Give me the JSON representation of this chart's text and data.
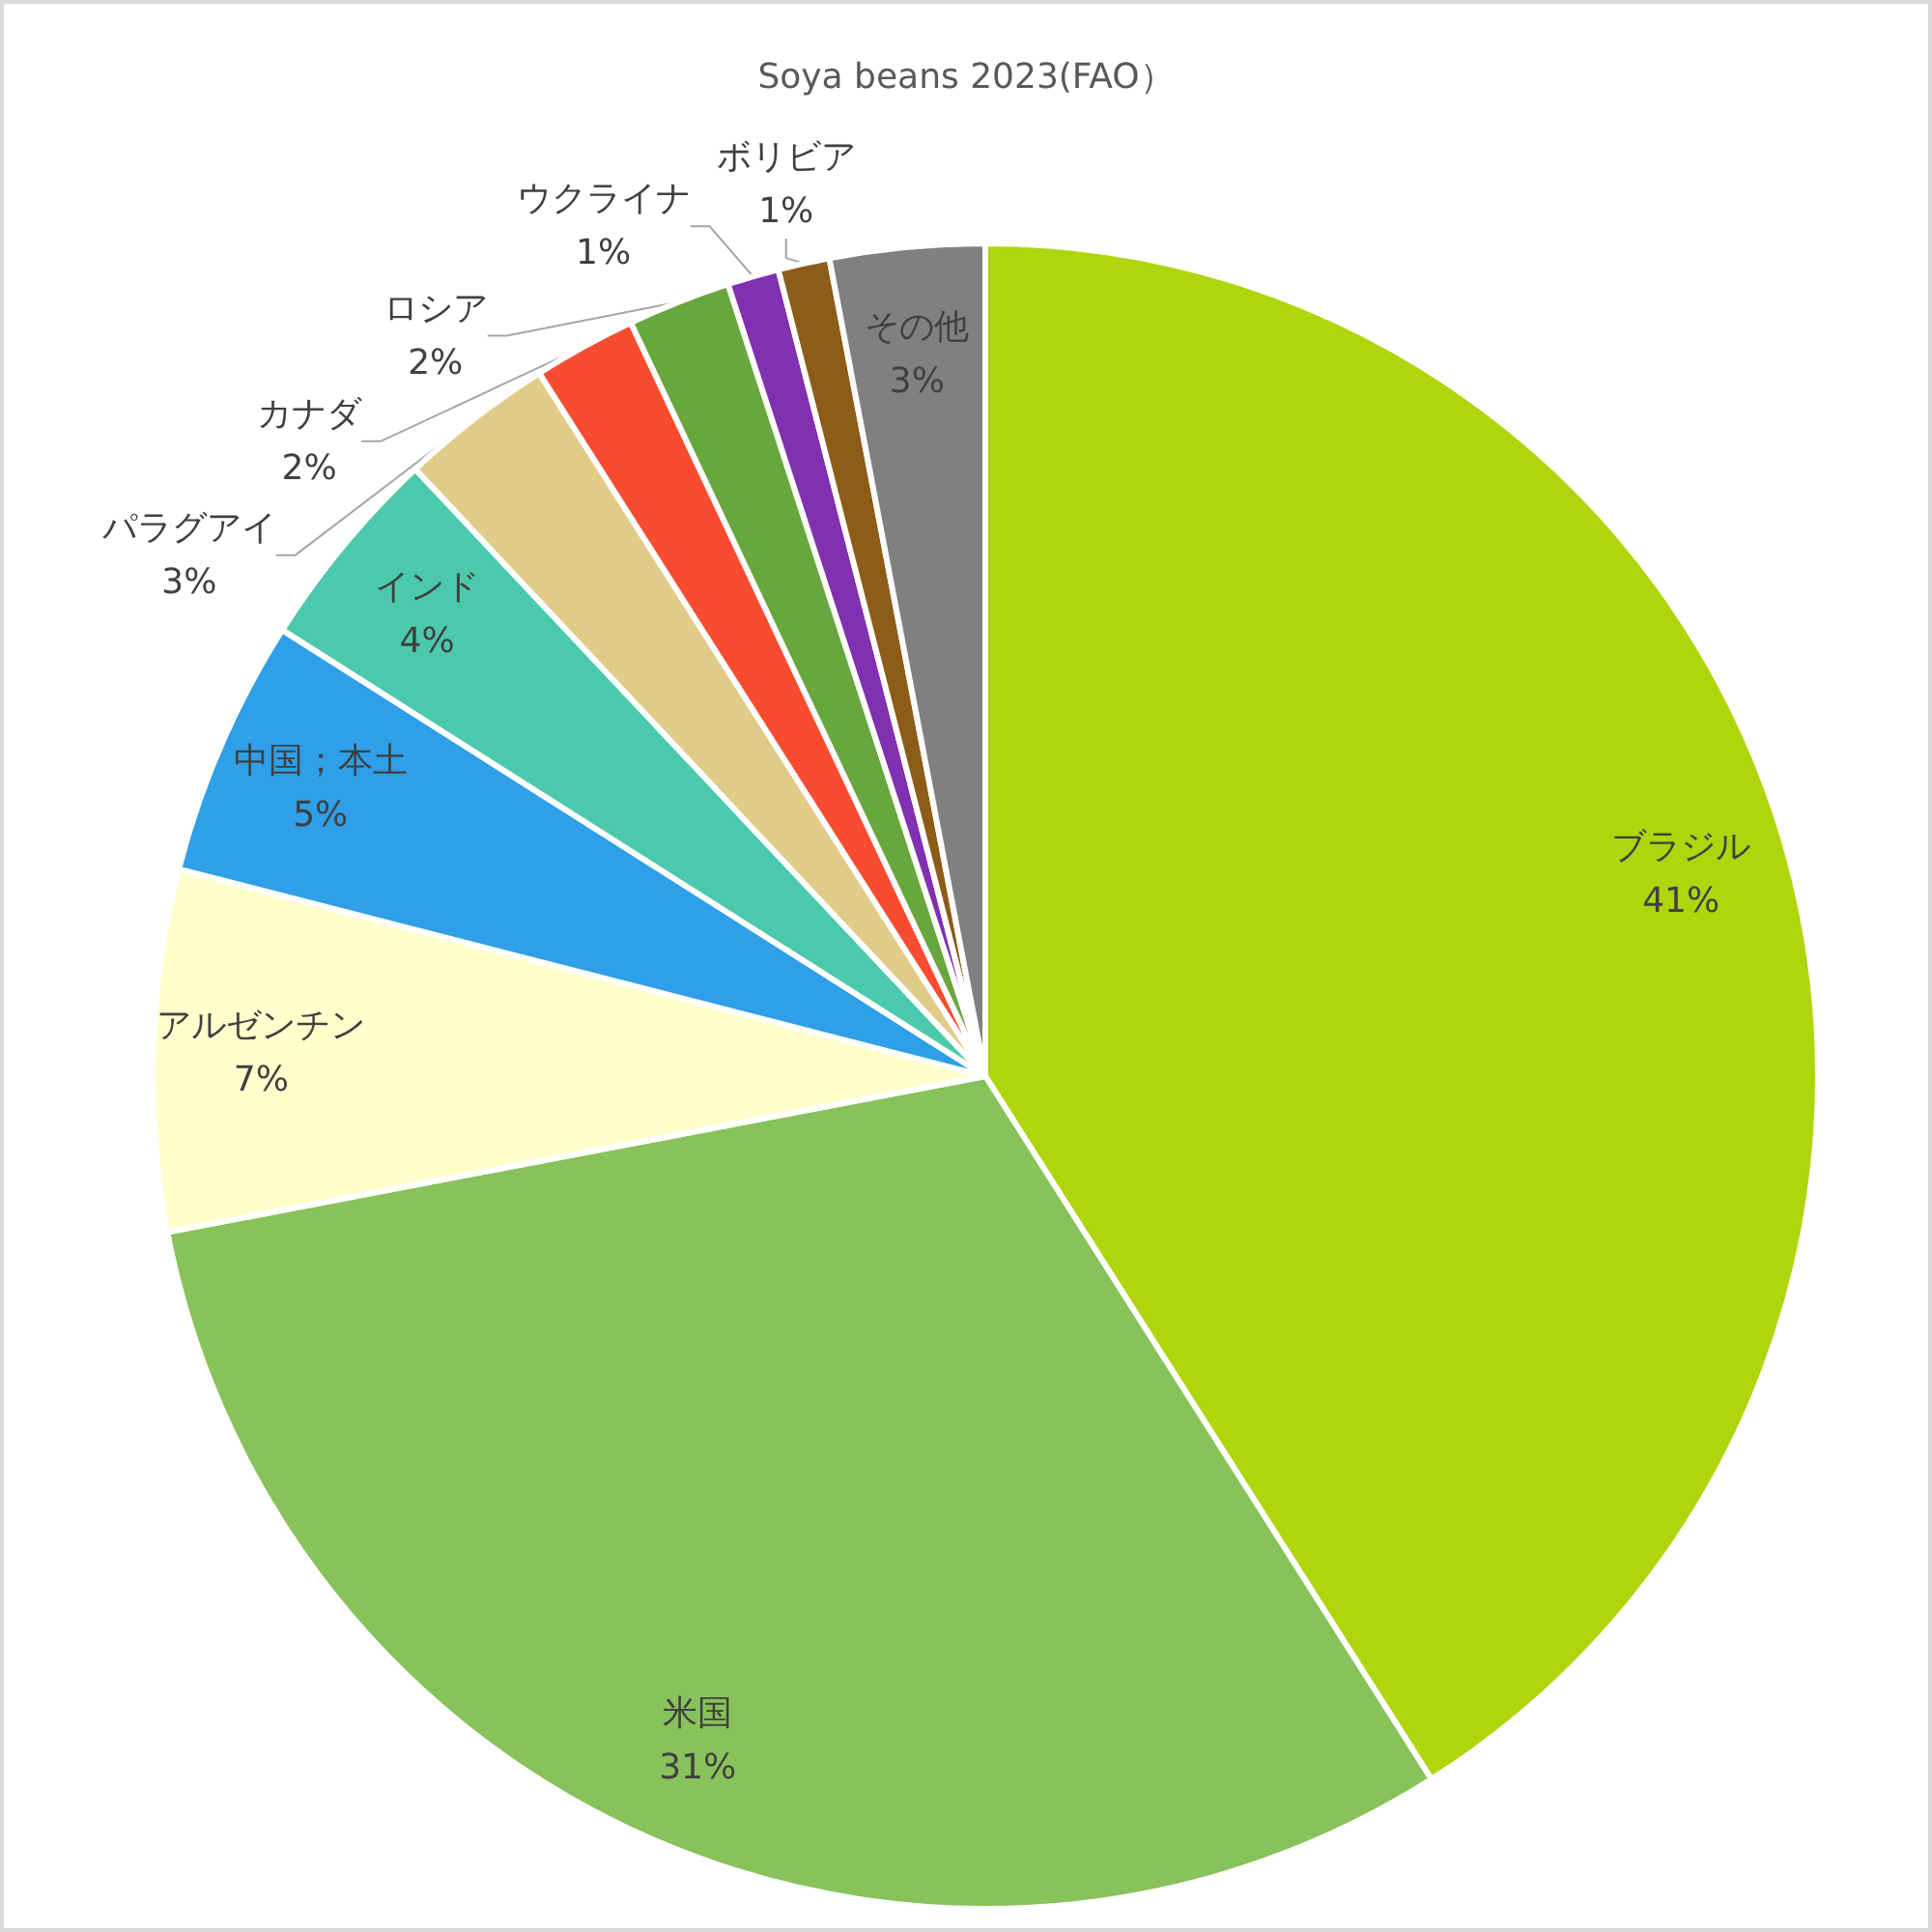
{
  "chart_data": {
    "type": "pie",
    "title": "Soya beans 2023(FAO）",
    "categories": [
      "ブラジル",
      "米国",
      "アルゼンチン",
      "中国；本土",
      "インド",
      "パラグアイ",
      "カナダ",
      "ロシア",
      "ウクライナ",
      "ボリビア",
      "その他"
    ],
    "values": [
      41,
      31,
      7,
      5,
      4,
      3,
      2,
      2,
      1,
      1,
      3
    ],
    "value_labels": [
      "41%",
      "31%",
      "7%",
      "5%",
      "4%",
      "3%",
      "2%",
      "2%",
      "1%",
      "1%",
      "3%"
    ],
    "colors": [
      "#b0d50d",
      "#88c25a",
      "#ffffcc",
      "#2e9fe8",
      "#4bc9ad",
      "#e0cb88",
      "#f84c31",
      "#68a63e",
      "#8030b0",
      "#8c5c18",
      "#808080"
    ]
  }
}
